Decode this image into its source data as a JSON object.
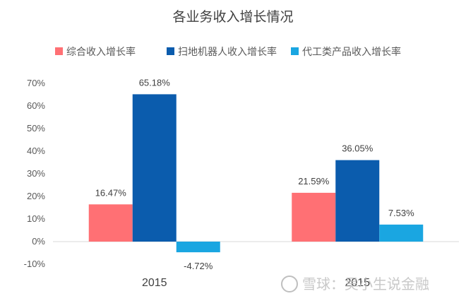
{
  "chart_data": {
    "type": "bar",
    "title": "各业务收入增长情况",
    "categories": [
      "2015",
      "2015"
    ],
    "series": [
      {
        "name": "综合收入增长率",
        "values": [
          16.47,
          21.59
        ],
        "labels": [
          "16.47%",
          "21.59%"
        ],
        "color": "#FF7074"
      },
      {
        "name": "扫地机器人收入增长率",
        "values": [
          65.18,
          36.05
        ],
        "labels": [
          "65.18%",
          "36.05%"
        ],
        "color": "#0B5CAD"
      },
      {
        "name": "代工类产品收入增长率",
        "values": [
          -4.72,
          7.53
        ],
        "labels": [
          "-4.72%",
          "7.53%"
        ],
        "color": "#1AA6E1"
      }
    ],
    "yticks": [
      "70%",
      "60%",
      "50%",
      "40%",
      "30%",
      "20%",
      "10%",
      "0%",
      "-10%"
    ],
    "ylim": [
      -10,
      70
    ],
    "grid": false,
    "legend_position": "top"
  },
  "watermark": {
    "text": "雪球：吴小生说金融"
  }
}
